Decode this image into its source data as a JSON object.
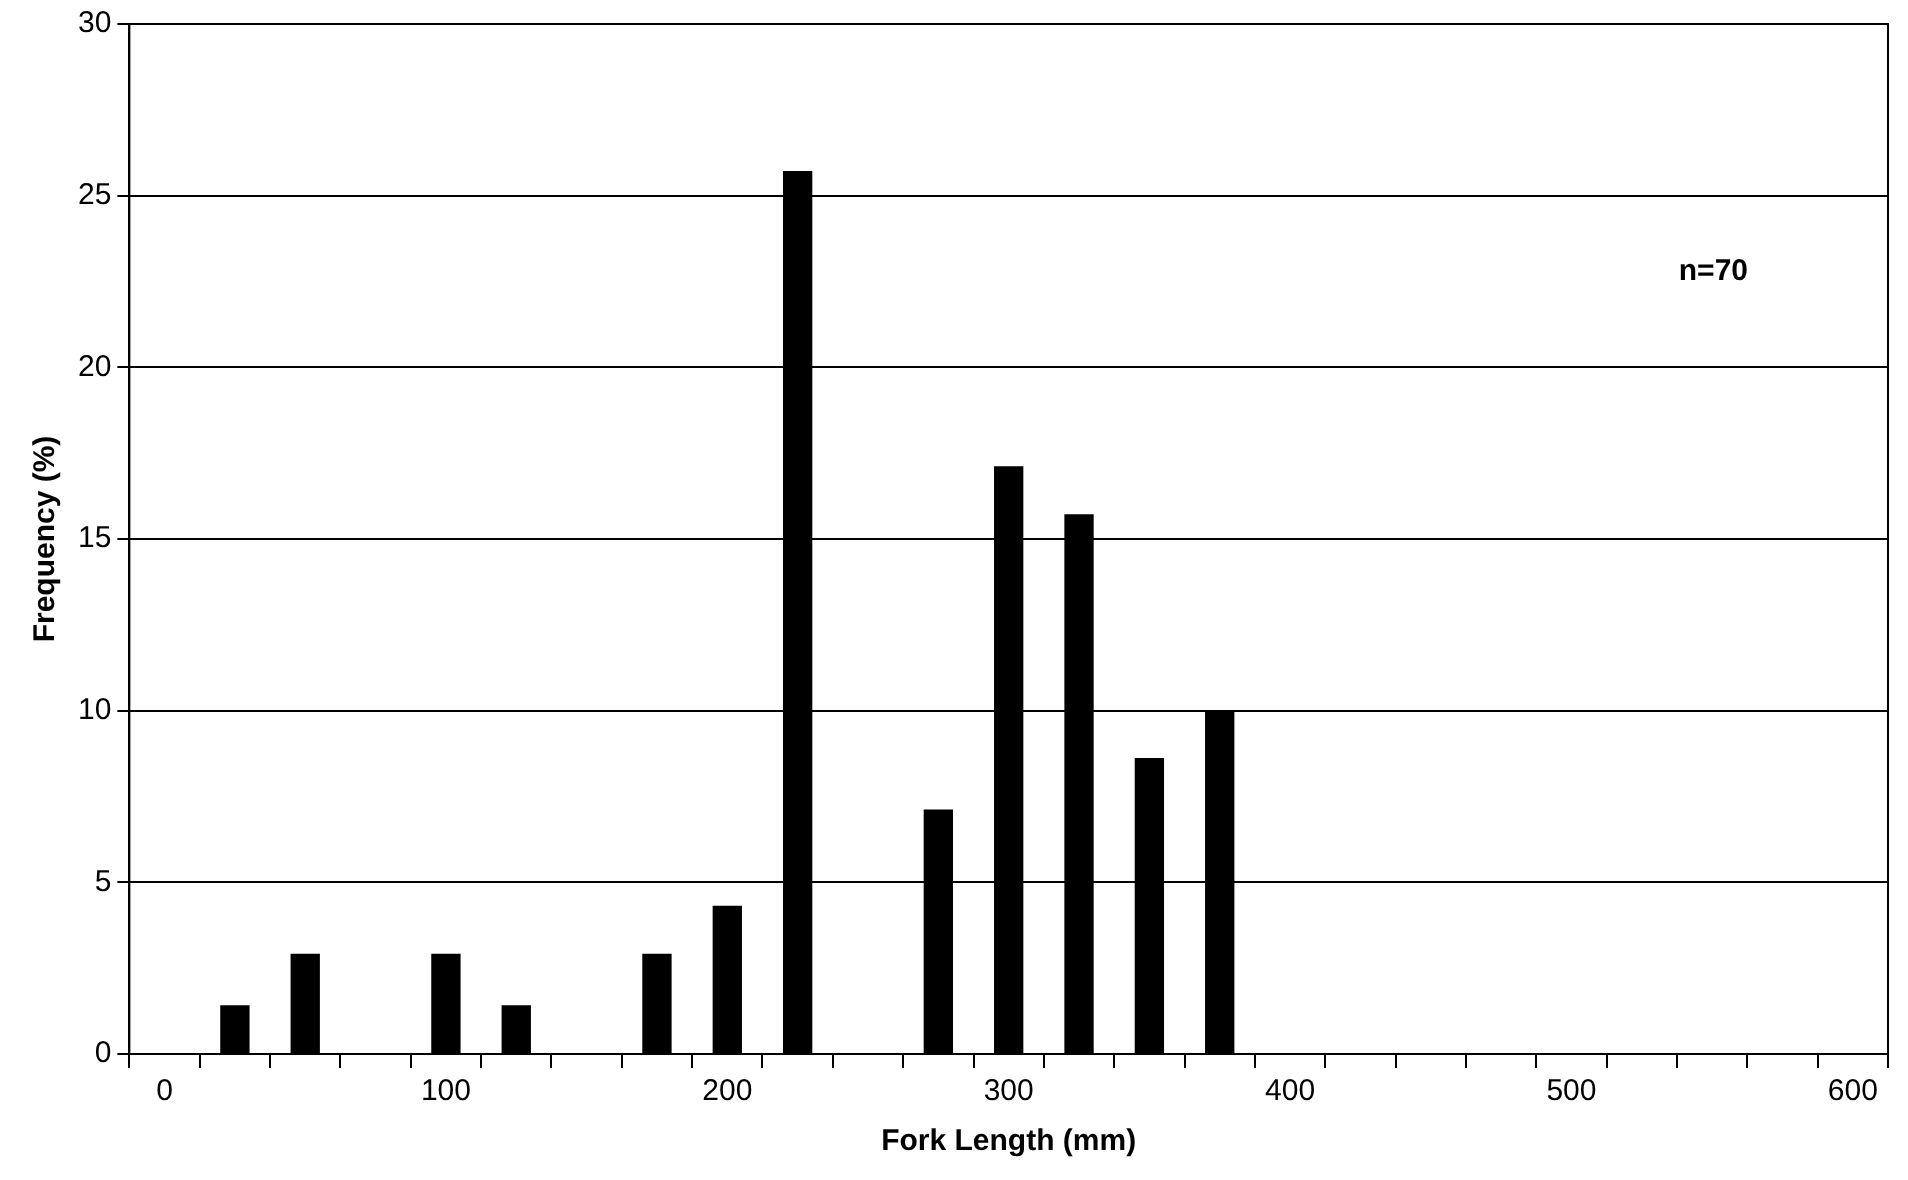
{
  "chart_data": {
    "type": "bar",
    "xlabel": "Fork Length (mm)",
    "ylabel": "Frequency (%)",
    "x": [
      25,
      50,
      100,
      125,
      175,
      200,
      225,
      275,
      300,
      325,
      350,
      375
    ],
    "values": [
      1.4,
      2.9,
      2.9,
      1.4,
      2.9,
      4.3,
      25.7,
      7.1,
      17.1,
      15.7,
      8.6,
      10
    ],
    "color": "#000000",
    "xlim": [
      -12.5,
      612.5
    ],
    "xticks": [
      0,
      100,
      200,
      300,
      400,
      500,
      600,
      {
        "value": -12.5,
        "label": null
      },
      {
        "value": 12.5,
        "label": null
      },
      {
        "value": 37.5,
        "label": null
      },
      {
        "value": 62.5,
        "label": null
      },
      {
        "value": 87.5,
        "label": null
      },
      {
        "value": 112.5,
        "label": null
      },
      {
        "value": 137.5,
        "label": null
      },
      {
        "value": 162.5,
        "label": null
      },
      {
        "value": 187.5,
        "label": null
      },
      {
        "value": 212.5,
        "label": null
      },
      {
        "value": 237.5,
        "label": null
      },
      {
        "value": 262.5,
        "label": null
      },
      {
        "value": 287.5,
        "label": null
      },
      {
        "value": 312.5,
        "label": null
      },
      {
        "value": 337.5,
        "label": null
      },
      {
        "value": 362.5,
        "label": null
      },
      {
        "value": 387.5,
        "label": null
      },
      {
        "value": 412.5,
        "label": null
      },
      {
        "value": 437.5,
        "label": null
      },
      {
        "value": 462.5,
        "label": null
      },
      {
        "value": 487.5,
        "label": null
      },
      {
        "value": 512.5,
        "label": null
      },
      {
        "value": 537.5,
        "label": null
      },
      {
        "value": 562.5,
        "label": null
      },
      {
        "value": 587.5,
        "label": null
      },
      {
        "value": 612.5,
        "label": null
      }
    ],
    "ylim": [
      0,
      30
    ],
    "yticks": [
      0,
      5,
      10,
      15,
      20,
      25,
      30
    ],
    "grid": "y",
    "legend": false,
    "annotations": [
      "n=70"
    ]
  }
}
